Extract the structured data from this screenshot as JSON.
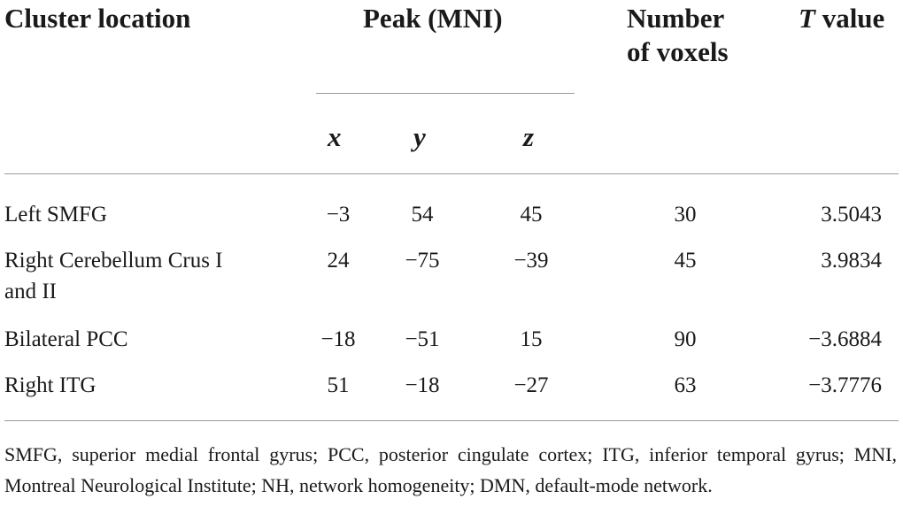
{
  "headers": {
    "cluster_location": "Cluster location",
    "peak": "Peak (MNI)",
    "number_line1": "Number",
    "number_line2": "of voxels",
    "t_value_italic": "T",
    "t_value_rest": " value",
    "x": "x",
    "y": "y",
    "z": "z"
  },
  "rows": [
    {
      "location": "Left SMFG",
      "location2": "",
      "x": "−3",
      "y": "54",
      "z": "45",
      "voxels": "30",
      "t": "3.5043"
    },
    {
      "location": "Right Cerebellum Crus I",
      "location2": "and II",
      "x": "24",
      "y": "−75",
      "z": "−39",
      "voxels": "45",
      "t": "3.9834"
    },
    {
      "location": "Bilateral PCC",
      "location2": "",
      "x": "−18",
      "y": "−51",
      "z": "15",
      "voxels": "90",
      "t": "−3.6884"
    },
    {
      "location": "Right ITG",
      "location2": "",
      "x": "51",
      "y": "−18",
      "z": "−27",
      "voxels": "63",
      "t": "−3.7776"
    }
  ],
  "footnote": "SMFG, superior medial frontal gyrus; PCC, posterior cingulate cortex; ITG, inferior temporal gyrus; MNI, Montreal Neurological Institute; NH, network homogeneity; DMN, default-mode network."
}
